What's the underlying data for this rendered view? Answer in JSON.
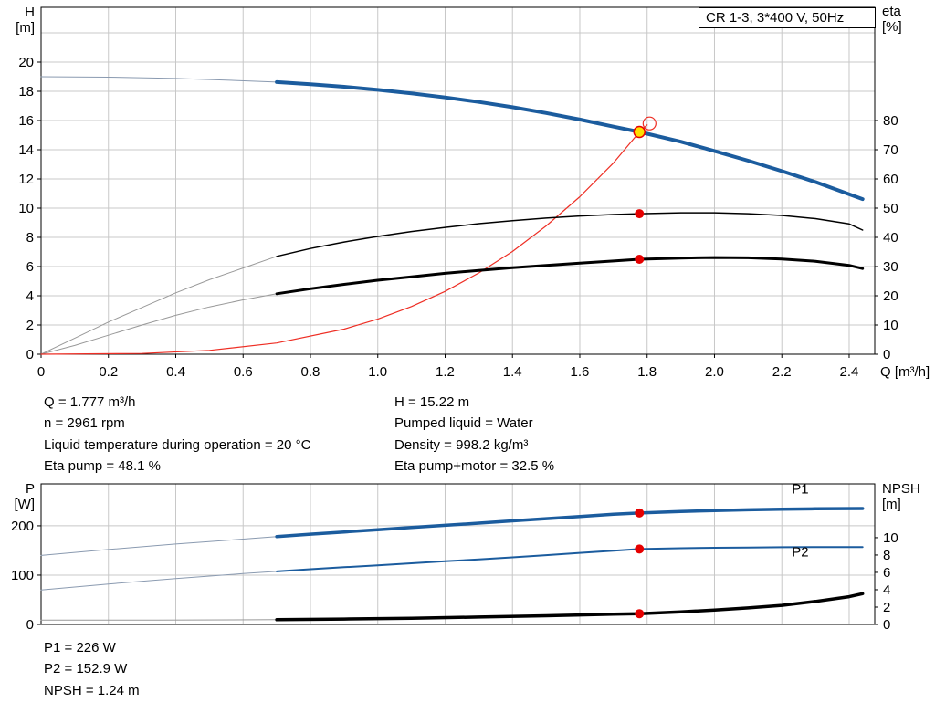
{
  "colors": {
    "grid": "#c8c8c8",
    "frame": "#000000",
    "curve_blue": "#1b5c9e",
    "curve_red": "#ee2e24",
    "curve_black": "#000000",
    "thin_blue": "#8a9ab0",
    "thin_gray": "#999999",
    "marker_red": "#e60000",
    "marker_yellow": "#ffdf00",
    "label_blue": "#1b5c9e"
  },
  "chart_data": [
    {
      "id": "hq",
      "type": "line",
      "title": "CR 1-3, 3*400 V, 50Hz",
      "x_axis": {
        "title": "Q [m³/h]",
        "min": 0,
        "max": 2.476,
        "ticks": [
          [
            0,
            "0"
          ],
          [
            0.2,
            "0.2"
          ],
          [
            0.4,
            "0.4"
          ],
          [
            0.6,
            "0.6"
          ],
          [
            0.8,
            "0.8"
          ],
          [
            1,
            "1.0"
          ],
          [
            1.2,
            "1.2"
          ],
          [
            1.4,
            "1.4"
          ],
          [
            1.6,
            "1.6"
          ],
          [
            1.8,
            "1.8"
          ],
          [
            2,
            "2.0"
          ],
          [
            2.2,
            "2.2"
          ],
          [
            2.4,
            "2.4"
          ]
        ]
      },
      "y_left": {
        "title_lines": [
          "H",
          "[m]"
        ],
        "min": 0,
        "max": 23.75,
        "ticks": [
          [
            0,
            "0"
          ],
          [
            2,
            "2"
          ],
          [
            4,
            "4"
          ],
          [
            6,
            "6"
          ],
          [
            8,
            "8"
          ],
          [
            10,
            "10"
          ],
          [
            12,
            "12"
          ],
          [
            14,
            "14"
          ],
          [
            16,
            "16"
          ],
          [
            18,
            "18"
          ],
          [
            20,
            "20"
          ]
        ],
        "grid": [
          2,
          4,
          6,
          8,
          10,
          12,
          14,
          16,
          18,
          20,
          22
        ]
      },
      "y_right": {
        "title_lines": [
          "eta",
          "[%]"
        ],
        "min": 0,
        "max": 118.75,
        "ticks": [
          [
            0,
            "0"
          ],
          [
            10,
            "10"
          ],
          [
            20,
            "20"
          ],
          [
            30,
            "30"
          ],
          [
            40,
            "40"
          ],
          [
            50,
            "50"
          ],
          [
            60,
            "60"
          ],
          [
            70,
            "70"
          ],
          [
            80,
            "80"
          ]
        ]
      },
      "series": [
        {
          "name": "head-curve-extension",
          "axis": "left",
          "color": "#8a9ab0",
          "width": 1,
          "points": [
            [
              0,
              19.0
            ],
            [
              0.2,
              18.97
            ],
            [
              0.4,
              18.88
            ],
            [
              0.55,
              18.77
            ],
            [
              0.7,
              18.63
            ]
          ]
        },
        {
          "name": "eta-pump-extension",
          "axis": "right",
          "color": "#999999",
          "width": 1,
          "points": [
            [
              0,
              0
            ],
            [
              0.1,
              5.5
            ],
            [
              0.2,
              11
            ],
            [
              0.3,
              16
            ],
            [
              0.4,
              21
            ],
            [
              0.5,
              25.5
            ],
            [
              0.6,
              29.5
            ],
            [
              0.7,
              33.5
            ]
          ]
        },
        {
          "name": "eta-pump-motor-extension",
          "axis": "right",
          "color": "#999999",
          "width": 1,
          "points": [
            [
              0,
              0
            ],
            [
              0.1,
              3
            ],
            [
              0.2,
              6.5
            ],
            [
              0.3,
              10
            ],
            [
              0.4,
              13.3
            ],
            [
              0.5,
              16.2
            ],
            [
              0.6,
              18.6
            ],
            [
              0.7,
              20.7
            ]
          ]
        },
        {
          "name": "system-curve",
          "axis": "left",
          "color": "#ee2e24",
          "width": 1.2,
          "points": [
            [
              0,
              0
            ],
            [
              0.3,
              0.05
            ],
            [
              0.5,
              0.26
            ],
            [
              0.7,
              0.77
            ],
            [
              0.9,
              1.72
            ],
            [
              1.0,
              2.4
            ],
            [
              1.1,
              3.26
            ],
            [
              1.2,
              4.3
            ],
            [
              1.3,
              5.56
            ],
            [
              1.4,
              7.03
            ],
            [
              1.5,
              8.78
            ],
            [
              1.6,
              10.78
            ],
            [
              1.7,
              13.1
            ],
            [
              1.777,
              15.22
            ],
            [
              1.8,
              15.7
            ]
          ]
        },
        {
          "name": "eta-pump-curve",
          "axis": "right",
          "color": "#000000",
          "width": 1.5,
          "points": [
            [
              0.7,
              33.5
            ],
            [
              0.8,
              36.2
            ],
            [
              0.9,
              38.4
            ],
            [
              1.0,
              40.3
            ],
            [
              1.1,
              42.0
            ],
            [
              1.2,
              43.4
            ],
            [
              1.3,
              44.7
            ],
            [
              1.4,
              45.7
            ],
            [
              1.5,
              46.6
            ],
            [
              1.6,
              47.3
            ],
            [
              1.7,
              47.8
            ],
            [
              1.777,
              48.1
            ],
            [
              1.9,
              48.4
            ],
            [
              2.0,
              48.4
            ],
            [
              2.1,
              48.1
            ],
            [
              2.2,
              47.5
            ],
            [
              2.3,
              46.4
            ],
            [
              2.4,
              44.6
            ],
            [
              2.44,
              42.5
            ]
          ]
        },
        {
          "name": "eta-pump-motor-curve",
          "axis": "right",
          "color": "#000000",
          "width": 3,
          "points": [
            [
              0.7,
              20.7
            ],
            [
              0.8,
              22.4
            ],
            [
              0.9,
              23.9
            ],
            [
              1.0,
              25.3
            ],
            [
              1.1,
              26.5
            ],
            [
              1.2,
              27.7
            ],
            [
              1.3,
              28.7
            ],
            [
              1.4,
              29.6
            ],
            [
              1.5,
              30.4
            ],
            [
              1.6,
              31.2
            ],
            [
              1.7,
              31.9
            ],
            [
              1.777,
              32.5
            ],
            [
              1.9,
              32.9
            ],
            [
              2.0,
              33.1
            ],
            [
              2.1,
              33.0
            ],
            [
              2.2,
              32.6
            ],
            [
              2.3,
              31.8
            ],
            [
              2.4,
              30.4
            ],
            [
              2.44,
              29.3
            ]
          ]
        },
        {
          "name": "head-curve",
          "axis": "left",
          "color": "#1b5c9e",
          "width": 4,
          "points": [
            [
              0.7,
              18.63
            ],
            [
              0.8,
              18.48
            ],
            [
              0.9,
              18.31
            ],
            [
              1.0,
              18.1
            ],
            [
              1.1,
              17.86
            ],
            [
              1.2,
              17.58
            ],
            [
              1.3,
              17.27
            ],
            [
              1.4,
              16.91
            ],
            [
              1.5,
              16.51
            ],
            [
              1.6,
              16.07
            ],
            [
              1.7,
              15.58
            ],
            [
              1.777,
              15.22
            ],
            [
              1.9,
              14.55
            ],
            [
              2.0,
              13.91
            ],
            [
              2.1,
              13.25
            ],
            [
              2.2,
              12.54
            ],
            [
              2.3,
              11.79
            ],
            [
              2.44,
              10.62
            ]
          ]
        }
      ],
      "markers": [
        {
          "name": "duty-point-ring",
          "q": 1.807,
          "v": 15.8,
          "axis": "left",
          "r": 7,
          "stroke": "#ee2e24",
          "stroke_width": 1.2
        },
        {
          "name": "eta-pump-point",
          "q": 1.777,
          "v": 48.1,
          "axis": "right",
          "r": 5,
          "fill": "#e60000"
        },
        {
          "name": "eta-pump-motor-point",
          "q": 1.777,
          "v": 32.5,
          "axis": "right",
          "r": 5,
          "fill": "#e60000"
        },
        {
          "name": "duty-point",
          "q": 1.777,
          "v": 15.22,
          "axis": "left",
          "r": 6,
          "fill": "#ffdf00",
          "stroke": "#e60000",
          "stroke_width": 1.5,
          "interactable": true
        }
      ],
      "annotations": []
    },
    {
      "id": "pn",
      "type": "line",
      "x_axis": {
        "title": "",
        "min": 0,
        "max": 2.476,
        "ticks": [
          [
            0.2,
            ""
          ],
          [
            0.4,
            ""
          ],
          [
            0.6,
            ""
          ],
          [
            0.8,
            ""
          ],
          [
            1,
            ""
          ],
          [
            1.2,
            ""
          ],
          [
            1.4,
            ""
          ],
          [
            1.6,
            ""
          ],
          [
            1.8,
            ""
          ],
          [
            2,
            ""
          ],
          [
            2.2,
            ""
          ],
          [
            2.4,
            ""
          ]
        ]
      },
      "y_left": {
        "title_lines": [
          "P",
          "[W]"
        ],
        "min": 0,
        "max": 285,
        "ticks": [
          [
            0,
            "0"
          ],
          [
            100,
            "100"
          ],
          [
            200,
            "200"
          ]
        ],
        "grid": [
          100,
          200
        ]
      },
      "y_right": {
        "title_lines": [
          "NPSH",
          "[m]"
        ],
        "min": 0,
        "max": 16.2,
        "ticks": [
          [
            0,
            "0"
          ],
          [
            2,
            "2"
          ],
          [
            4,
            "4"
          ],
          [
            6,
            "6"
          ],
          [
            8,
            "8"
          ],
          [
            10,
            "10"
          ]
        ]
      },
      "series": [
        {
          "name": "p1-curve-extension",
          "axis": "left",
          "color": "#8a9ab0",
          "width": 1,
          "points": [
            [
              0,
              140
            ],
            [
              0.2,
              152
            ],
            [
              0.4,
              163
            ],
            [
              0.6,
              173
            ],
            [
              0.7,
              178
            ]
          ]
        },
        {
          "name": "p2-curve-extension",
          "axis": "left",
          "color": "#8a9ab0",
          "width": 1,
          "points": [
            [
              0,
              70
            ],
            [
              0.2,
              82
            ],
            [
              0.4,
              93
            ],
            [
              0.6,
              103
            ],
            [
              0.7,
              107.5
            ]
          ]
        },
        {
          "name": "npsh-curve-extension",
          "axis": "right",
          "color": "#999999",
          "width": 1,
          "points": [
            [
              0,
              0.5
            ],
            [
              0.35,
              0.5
            ],
            [
              0.7,
              0.55
            ]
          ]
        },
        {
          "name": "p2-curve",
          "axis": "left",
          "color": "#1b5c9e",
          "width": 2,
          "points": [
            [
              0.7,
              107.5
            ],
            [
              0.8,
              112
            ],
            [
              0.9,
              116
            ],
            [
              1.0,
              120
            ],
            [
              1.1,
              124
            ],
            [
              1.2,
              128
            ],
            [
              1.3,
              132
            ],
            [
              1.4,
              136
            ],
            [
              1.5,
              140.5
            ],
            [
              1.6,
              145
            ],
            [
              1.7,
              149.5
            ],
            [
              1.777,
              152.9
            ],
            [
              1.9,
              154.5
            ],
            [
              2.0,
              155.5
            ],
            [
              2.1,
              156
            ],
            [
              2.2,
              156.5
            ],
            [
              2.3,
              157
            ],
            [
              2.44,
              157
            ]
          ]
        },
        {
          "name": "p1-curve",
          "axis": "left",
          "color": "#1b5c9e",
          "width": 3.5,
          "points": [
            [
              0.7,
              178
            ],
            [
              0.8,
              183
            ],
            [
              0.9,
              187.5
            ],
            [
              1.0,
              192
            ],
            [
              1.1,
              196.5
            ],
            [
              1.2,
              201
            ],
            [
              1.3,
              205.5
            ],
            [
              1.4,
              210
            ],
            [
              1.5,
              214.5
            ],
            [
              1.6,
              219
            ],
            [
              1.7,
              223.5
            ],
            [
              1.777,
              226
            ],
            [
              1.9,
              229
            ],
            [
              2.0,
              231
            ],
            [
              2.1,
              232.5
            ],
            [
              2.2,
              233.5
            ],
            [
              2.3,
              234.5
            ],
            [
              2.44,
              235
            ]
          ]
        },
        {
          "name": "npsh-curve",
          "axis": "right",
          "color": "#000000",
          "width": 3.5,
          "points": [
            [
              0.7,
              0.55
            ],
            [
              0.9,
              0.62
            ],
            [
              1.1,
              0.72
            ],
            [
              1.3,
              0.85
            ],
            [
              1.5,
              1.0
            ],
            [
              1.7,
              1.18
            ],
            [
              1.777,
              1.24
            ],
            [
              1.9,
              1.45
            ],
            [
              2.0,
              1.65
            ],
            [
              2.1,
              1.9
            ],
            [
              2.2,
              2.2
            ],
            [
              2.3,
              2.65
            ],
            [
              2.4,
              3.2
            ],
            [
              2.44,
              3.55
            ]
          ]
        }
      ],
      "markers": [
        {
          "name": "p1-point",
          "q": 1.777,
          "v": 226,
          "axis": "left",
          "r": 5,
          "fill": "#e60000"
        },
        {
          "name": "p2-point",
          "q": 1.777,
          "v": 152.9,
          "axis": "left",
          "r": 5,
          "fill": "#e60000"
        },
        {
          "name": "npsh-point",
          "q": 1.777,
          "v": 1.24,
          "axis": "right",
          "r": 5,
          "fill": "#e60000"
        }
      ],
      "annotations": [
        {
          "name": "p1-label",
          "text": "P1",
          "q": 2.23,
          "v": 266,
          "axis": "left",
          "color": "#1b5c9e"
        },
        {
          "name": "p2-label",
          "text": "P2",
          "q": 2.23,
          "v": 138,
          "axis": "left",
          "color": "#1b5c9e"
        }
      ]
    }
  ],
  "readouts": {
    "top_left": [
      "Q = 1.777 m³/h",
      "n = 2961 rpm",
      "Liquid temperature during operation = 20 °C",
      "Eta pump = 48.1 %"
    ],
    "top_right": [
      "H = 15.22 m",
      "Pumped liquid = Water",
      "Density = 998.2 kg/m³",
      "Eta pump+motor = 32.5 %"
    ],
    "bottom": [
      "P1 = 226 W",
      "P2 = 152.9 W",
      "NPSH = 1.24 m"
    ]
  }
}
